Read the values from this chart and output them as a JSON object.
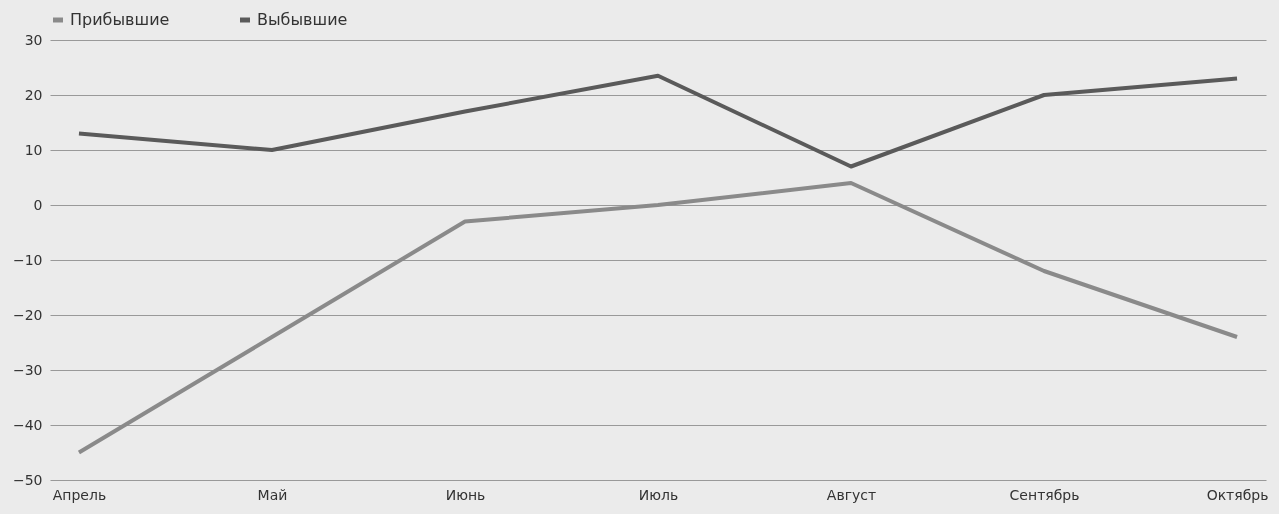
{
  "chart_data": {
    "type": "line",
    "categories": [
      "Апрель",
      "Май",
      "Июнь",
      "Июль",
      "Август",
      "Сентябрь",
      "Октябрь"
    ],
    "series": [
      {
        "name": "Прибывшие",
        "color": "#8a8a8a",
        "values": [
          -45,
          -24,
          -3,
          0,
          4,
          -12,
          -24
        ]
      },
      {
        "name": "Выбывшие",
        "color": "#5a5a5a",
        "values": [
          13,
          10,
          17,
          23.5,
          7,
          20,
          23
        ]
      }
    ],
    "ylim": [
      -50,
      30
    ],
    "yticks": [
      -50,
      -40,
      -30,
      -20,
      -10,
      0,
      10,
      20,
      30
    ],
    "grid": "y",
    "legend": "top left",
    "marker": "none",
    "line_style": "solid"
  }
}
